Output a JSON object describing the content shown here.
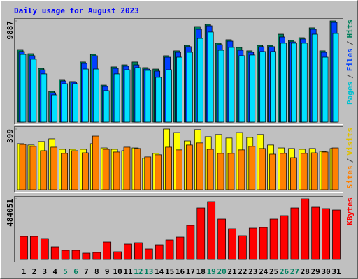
{
  "chart_data": [
    {
      "type": "bar",
      "title": "Daily usage for August 2023",
      "ylim": [
        0,
        9887
      ],
      "yticks": [
        9887
      ],
      "legend_separator": "/",
      "series": [
        {
          "name": "Pages",
          "color": "#00e0ff",
          "text_color": "#00c0d0",
          "values": [
            6610,
            6140,
            4710,
            2660,
            3750,
            3750,
            5180,
            5180,
            3070,
            4710,
            5110,
            5320,
            5050,
            4370,
            5110,
            6340,
            6820,
            8180,
            8800,
            7020,
            7300,
            6480,
            6550,
            6890,
            6890,
            7710,
            7710,
            7710,
            8590,
            6340,
            8660
          ]
        },
        {
          "name": "Files",
          "color": "#0040ff",
          "text_color": "#0040ff",
          "values": [
            6890,
            6480,
            5110,
            2860,
            4020,
            3890,
            5730,
            6480,
            3480,
            5250,
            5460,
            5590,
            5180,
            4980,
            6340,
            6820,
            7370,
            9070,
            9410,
            7570,
            7910,
            7020,
            6820,
            7370,
            7370,
            8320,
            7840,
            8120,
            9070,
            6820,
            9750
          ]
        },
        {
          "name": "Hits",
          "color": "#00805c",
          "text_color": "#00805c",
          "values": [
            7090,
            6680,
            5250,
            3000,
            4160,
            3960,
            5870,
            6620,
            3610,
            5390,
            5590,
            5870,
            5320,
            5180,
            6480,
            6960,
            7500,
            9340,
            9550,
            7710,
            8050,
            7300,
            6960,
            7500,
            7500,
            8590,
            7980,
            8250,
            9210,
            6960,
            9887
          ]
        }
      ]
    },
    {
      "type": "bar",
      "ylim": [
        0,
        399
      ],
      "yticks": [
        399
      ],
      "legend_separator": "/",
      "series": [
        {
          "name": "Sites",
          "color": "#ff8000",
          "text_color": "#ff8000",
          "values": [
            298,
            285,
            257,
            280,
            239,
            257,
            243,
            353,
            266,
            248,
            280,
            271,
            216,
            230,
            280,
            262,
            294,
            308,
            266,
            239,
            239,
            262,
            285,
            271,
            234,
            239,
            211,
            239,
            243,
            248,
            275
          ]
        },
        {
          "name": "Visits",
          "color": "#ffff00",
          "text_color": "#e0c000",
          "values": [
            303,
            294,
            317,
            335,
            266,
            266,
            266,
            303,
            275,
            266,
            257,
            275,
            207,
            239,
            399,
            376,
            321,
            395,
            349,
            363,
            340,
            376,
            344,
            363,
            294,
            275,
            271,
            266,
            271,
            252,
            271
          ]
        }
      ]
    },
    {
      "type": "bar",
      "ylim": [
        0,
        484051
      ],
      "yticks": [
        484051
      ],
      "categories": [
        "1",
        "2",
        "3",
        "4",
        "5",
        "6",
        "7",
        "8",
        "9",
        "10",
        "11",
        "12",
        "13",
        "14",
        "15",
        "16",
        "17",
        "18",
        "19",
        "20",
        "21",
        "22",
        "23",
        "24",
        "25",
        "26",
        "27",
        "28",
        "29",
        "30",
        "31"
      ],
      "tick_label_colors": [
        "#000",
        "#000",
        "#000",
        "#000",
        "#008060",
        "#008060",
        "#000",
        "#000",
        "#000",
        "#000",
        "#000",
        "#008060",
        "#008060",
        "#000",
        "#000",
        "#000",
        "#000",
        "#000",
        "#008060",
        "#008060",
        "#000",
        "#000",
        "#000",
        "#000",
        "#000",
        "#008060",
        "#008060",
        "#000",
        "#000",
        "#000",
        "#000"
      ],
      "series": [
        {
          "name": "KBytes",
          "color": "#ff0000",
          "text_color": "#ff0000",
          "values": [
            183600,
            183600,
            166900,
            100200,
            72300,
            72300,
            50100,
            55600,
            139100,
            61200,
            122400,
            133500,
            83500,
            116800,
            155800,
            178000,
            272600,
            411700,
            461800,
            322700,
            244800,
            189200,
            250400,
            255900,
            322700,
            350500,
            411700,
            484051,
            417300,
            406200,
            395000
          ]
        }
      ]
    }
  ]
}
